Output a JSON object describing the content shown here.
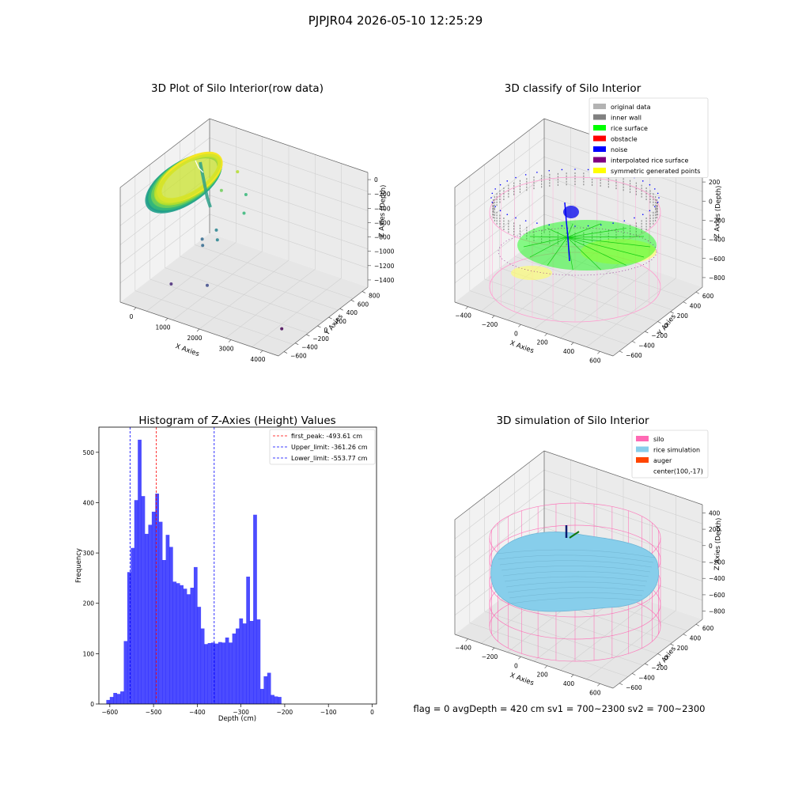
{
  "figure": {
    "suptitle": "PJPJR04 2026-05-10 12:25:29",
    "footer": "flag = 0     avgDepth = 420 cm  sv1 = 700~2300  sv2 = 700~2300"
  },
  "chart_data": [
    {
      "type": "scatter",
      "subtype": "3d",
      "title": "3D Plot of Silo Interior(row data)",
      "xlabel": "X Axies",
      "ylabel": "Y Axies",
      "zlabel": "Z Axies (Depth)",
      "x_ticks": [
        "0",
        "1000",
        "2000",
        "3000",
        "4000"
      ],
      "y_ticks": [
        "−600",
        "−400",
        "−200",
        "0",
        "200",
        "400",
        "600",
        "800"
      ],
      "z_ticks": [
        "0",
        "−200",
        "−400",
        "−600",
        "−800",
        "−1000",
        "−1200",
        "−1400"
      ],
      "xlim": [
        -500,
        4200
      ],
      "ylim": [
        -700,
        850
      ],
      "zlim": [
        -1500,
        50
      ],
      "colormap": "viridis",
      "outlier_points": [
        {
          "x": 1100,
          "y": 400,
          "z": -150
        },
        {
          "x": 1050,
          "y": 150,
          "z": -260
        },
        {
          "x": 1350,
          "y": 400,
          "z": -420
        },
        {
          "x": 1550,
          "y": 250,
          "z": -550
        },
        {
          "x": 900,
          "y": 150,
          "z": -820
        },
        {
          "x": 1100,
          "y": 50,
          "z": -860
        },
        {
          "x": 650,
          "y": 50,
          "z": -920
        },
        {
          "x": 750,
          "y": 0,
          "z": -960
        },
        {
          "x": 500,
          "y": -400,
          "z": -1280
        },
        {
          "x": 1400,
          "y": -300,
          "z": -1220
        },
        {
          "x": 3700,
          "y": -350,
          "z": -1420
        }
      ]
    },
    {
      "type": "scatter",
      "subtype": "3d",
      "title": "3D classify of Silo Interior",
      "xlabel": "X Axies",
      "ylabel": "Y Axies",
      "zlabel": "Z Axies (Depth)",
      "x_ticks": [
        "−400",
        "−200",
        "0",
        "200",
        "400",
        "600"
      ],
      "y_ticks": [
        "−600",
        "−400",
        "−200",
        "0",
        "200",
        "400",
        "600"
      ],
      "z_ticks": [
        "200",
        "0",
        "−200",
        "−400",
        "−600",
        "−800"
      ],
      "xlim": [
        -550,
        750
      ],
      "ylim": [
        -650,
        650
      ],
      "zlim": [
        -950,
        300
      ],
      "legend": [
        {
          "label": "original data",
          "color": "#b3b3b3"
        },
        {
          "label": "inner wall",
          "color": "#808080"
        },
        {
          "label": "rice surface",
          "color": "#00ff00"
        },
        {
          "label": "obstacle",
          "color": "#ff0000"
        },
        {
          "label": "noise",
          "color": "#0000ff"
        },
        {
          "label": "interpolated rice surface",
          "color": "#800080"
        },
        {
          "label": "symmetric generated points",
          "color": "#ffff00"
        }
      ]
    },
    {
      "type": "bar",
      "subtype": "histogram",
      "title": "Histogram of Z-Axies (Height) Values",
      "xlabel": "Depth (cm)",
      "ylabel": "Frequency",
      "xlim": [
        -625,
        10
      ],
      "ylim": [
        0,
        550
      ],
      "bar_color": "#0000ff",
      "bar_alpha": 0.7,
      "x_ticks": [
        -600,
        -500,
        -400,
        -300,
        -200,
        -100,
        0
      ],
      "x_tick_labels": [
        "−600",
        "−500",
        "−400",
        "−300",
        "−200",
        "−100",
        "0"
      ],
      "y_ticks": [
        0,
        100,
        200,
        300,
        400,
        500
      ],
      "bin_start": -608,
      "bin_width": 8,
      "values": [
        8,
        14,
        22,
        20,
        25,
        125,
        262,
        310,
        405,
        525,
        413,
        338,
        356,
        382,
        418,
        362,
        286,
        336,
        312,
        243,
        240,
        236,
        229,
        218,
        231,
        272,
        193,
        150,
        119,
        121,
        122,
        120,
        123,
        122,
        132,
        122,
        140,
        150,
        170,
        160,
        253,
        165,
        376,
        168,
        30,
        55,
        62,
        18,
        15,
        14
      ],
      "vlines": [
        {
          "x": -493.61,
          "label": "first_peak: -493.61 cm",
          "color": "#ff0000"
        },
        {
          "x": -361.26,
          "label": "Upper_limit: -361.26 cm",
          "color": "#0000ff"
        },
        {
          "x": -553.77,
          "label": "Lower_limit: -553.77 cm",
          "color": "#0000ff"
        }
      ]
    },
    {
      "type": "area",
      "subtype": "3d-surface",
      "title": "3D simulation of Silo Interior",
      "xlabel": "X Axies",
      "ylabel": "Y Axies",
      "zlabel": "Z Axies (Depth)",
      "x_ticks": [
        "−400",
        "−200",
        "0",
        "200",
        "400",
        "600"
      ],
      "y_ticks": [
        "−600",
        "−400",
        "−200",
        "0",
        "200",
        "400",
        "600"
      ],
      "z_ticks": [
        "400",
        "200",
        "0",
        "−200",
        "−400",
        "−600",
        "−800"
      ],
      "xlim": [
        -550,
        750
      ],
      "ylim": [
        -650,
        650
      ],
      "zlim": [
        -950,
        450
      ],
      "legend": [
        {
          "label": "silo",
          "color": "#ff69b4"
        },
        {
          "label": "rice simulation",
          "color": "#87ceeb"
        },
        {
          "label": "auger",
          "color": "#ff4500"
        },
        {
          "label": "center(100,-17)",
          "color": "none"
        }
      ]
    }
  ]
}
